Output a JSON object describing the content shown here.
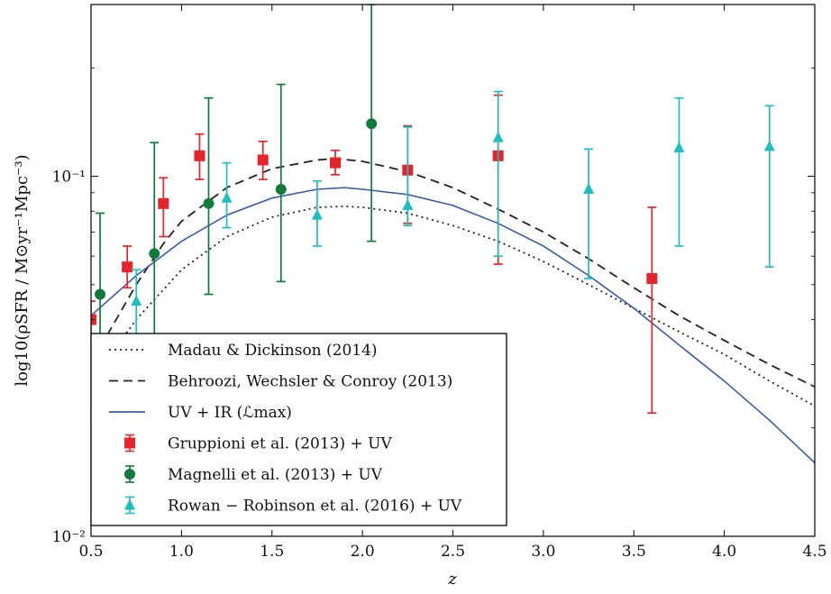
{
  "chart_data": {
    "type": "scatter",
    "xlabel": "z",
    "ylabel": "log10(ρSFR / M⊙yr⁻¹Mpc⁻³)",
    "xlim": [
      0.5,
      4.5
    ],
    "ylim": [
      0.01,
      0.3
    ],
    "y_scale": "log",
    "x_ticks": [
      "0.5",
      "1.0",
      "1.5",
      "2.0",
      "2.5",
      "3.0",
      "3.5",
      "4.0",
      "4.5"
    ],
    "y_ticks": [
      {
        "value": 0.1,
        "label": "10⁻¹"
      },
      {
        "value": 0.01,
        "label": "10⁻²"
      }
    ],
    "grid": false,
    "legend_position": "lower-left",
    "curves": [
      {
        "name": "Madau & Dickinson (2014)",
        "style": "dotted",
        "color": "#222222",
        "x": [
          0.5,
          0.75,
          1.0,
          1.25,
          1.5,
          1.75,
          1.9,
          2.0,
          2.25,
          2.5,
          2.75,
          3.0,
          3.25,
          3.5,
          3.75,
          4.0,
          4.25,
          4.5
        ],
        "y": [
          0.027,
          0.04,
          0.055,
          0.068,
          0.077,
          0.082,
          0.0825,
          0.082,
          0.079,
          0.073,
          0.066,
          0.058,
          0.05,
          0.043,
          0.037,
          0.032,
          0.027,
          0.023
        ]
      },
      {
        "name": "Behroozi, Wechsler & Conroy (2013)",
        "style": "dashed",
        "color": "#222222",
        "x": [
          0.5,
          0.6,
          0.75,
          0.9,
          1.0,
          1.25,
          1.5,
          1.75,
          1.85,
          2.0,
          2.25,
          2.5,
          2.75,
          3.0,
          3.25,
          3.5,
          3.75,
          4.0,
          4.25,
          4.5
        ],
        "y": [
          0.028,
          0.037,
          0.05,
          0.065,
          0.075,
          0.093,
          0.105,
          0.111,
          0.112,
          0.11,
          0.103,
          0.093,
          0.081,
          0.07,
          0.059,
          0.049,
          0.041,
          0.035,
          0.03,
          0.026
        ]
      },
      {
        "name": "UV + IR (ℒmax)",
        "style": "solid",
        "color": "#3b5ba8",
        "x": [
          0.5,
          0.75,
          1.0,
          1.25,
          1.5,
          1.75,
          1.9,
          2.0,
          2.25,
          2.5,
          2.75,
          3.0,
          3.25,
          3.5,
          3.75,
          4.0,
          4.25,
          4.5
        ],
        "y": [
          0.041,
          0.053,
          0.066,
          0.078,
          0.087,
          0.092,
          0.093,
          0.092,
          0.089,
          0.083,
          0.074,
          0.064,
          0.053,
          0.043,
          0.034,
          0.027,
          0.021,
          0.016
        ]
      }
    ],
    "series": [
      {
        "name": "Gruppioni et al. (2013) + UV",
        "marker": "square",
        "color": "#e8232a",
        "points": [
          {
            "x": 0.5,
            "y": 0.04,
            "lo": 0.034,
            "hi": 0.045
          },
          {
            "x": 0.7,
            "y": 0.056,
            "lo": 0.049,
            "hi": 0.064
          },
          {
            "x": 0.9,
            "y": 0.084,
            "lo": 0.068,
            "hi": 0.099
          },
          {
            "x": 1.1,
            "y": 0.114,
            "lo": 0.098,
            "hi": 0.131
          },
          {
            "x": 1.45,
            "y": 0.111,
            "lo": 0.098,
            "hi": 0.125
          },
          {
            "x": 1.85,
            "y": 0.109,
            "lo": 0.101,
            "hi": 0.118
          },
          {
            "x": 2.25,
            "y": 0.104,
            "lo": 0.074,
            "hi": 0.138
          },
          {
            "x": 2.75,
            "y": 0.114,
            "lo": 0.057,
            "hi": 0.168
          },
          {
            "x": 3.6,
            "y": 0.052,
            "lo": 0.022,
            "hi": 0.082
          }
        ]
      },
      {
        "name": "Magnelli et al. (2013) + UV",
        "marker": "circle",
        "color": "#127a3c",
        "points": [
          {
            "x": 0.55,
            "y": 0.047,
            "lo": 0.028,
            "hi": 0.079
          },
          {
            "x": 0.85,
            "y": 0.061,
            "lo": 0.034,
            "hi": 0.124
          },
          {
            "x": 1.15,
            "y": 0.084,
            "lo": 0.047,
            "hi": 0.165
          },
          {
            "x": 1.55,
            "y": 0.092,
            "lo": 0.051,
            "hi": 0.18
          },
          {
            "x": 2.05,
            "y": 0.14,
            "lo": 0.066,
            "hi": 0.3
          }
        ]
      },
      {
        "name": "Rowan − Robinson et al. (2016) + UV",
        "marker": "triangle",
        "color": "#1fbfbf",
        "points": [
          {
            "x": 0.75,
            "y": 0.045,
            "lo": 0.035,
            "hi": 0.055
          },
          {
            "x": 1.25,
            "y": 0.087,
            "lo": 0.072,
            "hi": 0.109
          },
          {
            "x": 1.75,
            "y": 0.078,
            "lo": 0.064,
            "hi": 0.097
          },
          {
            "x": 2.25,
            "y": 0.083,
            "lo": 0.073,
            "hi": 0.137
          },
          {
            "x": 2.75,
            "y": 0.128,
            "lo": 0.06,
            "hi": 0.172
          },
          {
            "x": 3.25,
            "y": 0.092,
            "lo": 0.052,
            "hi": 0.119
          },
          {
            "x": 3.75,
            "y": 0.12,
            "lo": 0.064,
            "hi": 0.165
          },
          {
            "x": 4.25,
            "y": 0.121,
            "lo": 0.056,
            "hi": 0.157
          }
        ]
      }
    ],
    "legend": {
      "madau": "Madau & Dickinson (2014)",
      "behroozi": "Behroozi, Wechsler & Conroy (2013)",
      "uvir": "UV + IR (ℒmax)",
      "gruppioni": "Gruppioni et al. (2013) + UV",
      "magnelli": "Magnelli et al. (2013) + UV",
      "rowan": "Rowan − Robinson et al. (2016) + UV"
    }
  }
}
